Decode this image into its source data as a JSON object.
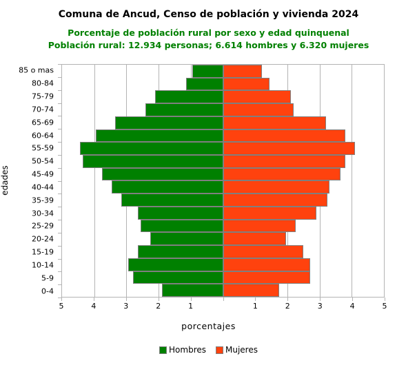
{
  "title": "Comuna de Ancud, Censo de población y vivienda 2024",
  "subtitle_line1": "Porcentaje de población rural por sexo y edad quinquenal",
  "subtitle_line2": "Población rural: 12.934 personas; 6.614 hombres y 6.320 mujeres",
  "colors": {
    "hombres": "#008000",
    "mujeres": "#ff420e",
    "subtitle_text": "#008000",
    "grid": "#b3b3b3",
    "bar_border": "#7f7f7f"
  },
  "chart_data": {
    "type": "bar",
    "variant": "population-pyramid",
    "title": "Comuna de Ancud, Censo de población y vivienda 2024",
    "subtitle": "Porcentaje de población rural por sexo y edad quinquenal — Población rural: 12.934 personas; 6.614 hombres y 6.320 mujeres",
    "xlabel": "porcentajes",
    "ylabel": "edades",
    "xlim": [
      -5,
      5
    ],
    "grid": true,
    "legend_position": "bottom",
    "categories": [
      "85 o mas",
      "80-84",
      "75-79",
      "70-74",
      "65-69",
      "60-64",
      "55-59",
      "50-54",
      "45-49",
      "40-44",
      "35-39",
      "30-34",
      "25-29",
      "20-24",
      "15-19",
      "10-14",
      "5-9",
      "0-4"
    ],
    "series": [
      {
        "name": "Hombres",
        "side": "left",
        "color": "#008000",
        "values": [
          0.95,
          1.15,
          2.1,
          2.4,
          3.35,
          3.95,
          4.45,
          4.35,
          3.75,
          3.45,
          3.15,
          2.65,
          2.55,
          2.25,
          2.65,
          2.95,
          2.8,
          1.9
        ]
      },
      {
        "name": "Mujeres",
        "side": "right",
        "color": "#ff420e",
        "values": [
          1.2,
          1.45,
          2.1,
          2.2,
          3.2,
          3.8,
          4.1,
          3.8,
          3.65,
          3.3,
          3.25,
          2.9,
          2.25,
          1.95,
          2.5,
          2.7,
          2.7,
          1.75
        ]
      }
    ],
    "x_tick_labels_left": [
      "5",
      "4",
      "3",
      "2",
      "1"
    ],
    "x_tick_labels_right": [
      "1",
      "2",
      "3",
      "4",
      "5"
    ]
  },
  "legend": {
    "items": [
      {
        "label": "Hombres",
        "color": "#008000"
      },
      {
        "label": "Mujeres",
        "color": "#ff420e"
      }
    ]
  }
}
